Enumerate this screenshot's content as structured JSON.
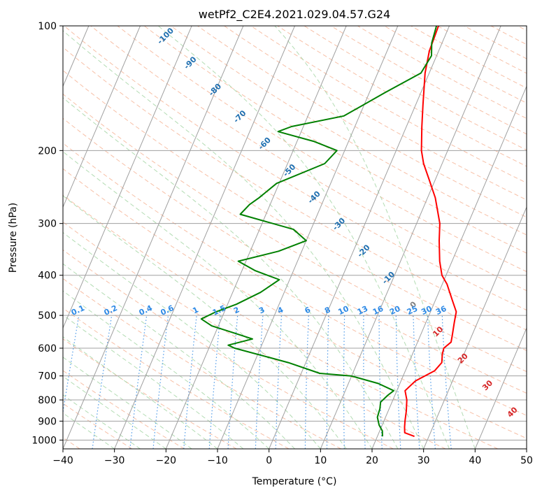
{
  "chart_data": {
    "type": "line",
    "title": "wetPf2_C2E4.2021.029.04.57.G24",
    "xlabel": "Temperature (°C)",
    "ylabel": "Pressure (hPa)",
    "xlim": [
      -40,
      50
    ],
    "ylim": [
      1050,
      100
    ],
    "y_scale": "log",
    "grid": true,
    "x_ticks": [
      "−40",
      "−30",
      "−20",
      "−10",
      "0",
      "10",
      "20",
      "30",
      "40",
      "50"
    ],
    "x_tick_values": [
      -40,
      -30,
      -20,
      -10,
      0,
      10,
      20,
      30,
      40,
      50
    ],
    "y_ticks": [
      "100",
      "200",
      "300",
      "400",
      "500",
      "600",
      "700",
      "800",
      "900",
      "1000"
    ],
    "y_tick_values": [
      100,
      200,
      300,
      400,
      500,
      600,
      700,
      800,
      900,
      1000
    ],
    "series": [
      {
        "role": "temperature",
        "color": "#ff0000",
        "points": [
          [
            27.2,
            980
          ],
          [
            25.0,
            960
          ],
          [
            24.5,
            930
          ],
          [
            24.1,
            900
          ],
          [
            23.5,
            850
          ],
          [
            22.7,
            800
          ],
          [
            21.6,
            760
          ],
          [
            22.8,
            720
          ],
          [
            25.7,
            680
          ],
          [
            26.4,
            650
          ],
          [
            25.8,
            620
          ],
          [
            25.6,
            600
          ],
          [
            26.5,
            580
          ],
          [
            26.2,
            560
          ],
          [
            25.5,
            520
          ],
          [
            25.0,
            490
          ],
          [
            23.3,
            460
          ],
          [
            20.9,
            420
          ],
          [
            19.2,
            400
          ],
          [
            17.6,
            370
          ],
          [
            15.8,
            330
          ],
          [
            14.5,
            300
          ],
          [
            11.5,
            260
          ],
          [
            8.8,
            235
          ],
          [
            6.4,
            215
          ],
          [
            4.9,
            200
          ],
          [
            3.0,
            175
          ],
          [
            1.4,
            155
          ],
          [
            -0.8,
            130
          ],
          [
            -1.8,
            115
          ],
          [
            -2.1,
            100
          ]
        ]
      },
      {
        "role": "dewpoint",
        "color": "#008000",
        "points": [
          [
            21.0,
            980
          ],
          [
            20.5,
            950
          ],
          [
            19.4,
            920
          ],
          [
            18.4,
            880
          ],
          [
            18.2,
            840
          ],
          [
            17.8,
            810
          ],
          [
            18.6,
            780
          ],
          [
            19.4,
            760
          ],
          [
            15.8,
            730
          ],
          [
            9.9,
            700
          ],
          [
            3.6,
            690
          ],
          [
            -3.4,
            650
          ],
          [
            -15.0,
            600
          ],
          [
            -16.5,
            590
          ],
          [
            -12.3,
            570
          ],
          [
            -16.7,
            550
          ],
          [
            -21.3,
            530
          ],
          [
            -23.9,
            510
          ],
          [
            -21.6,
            490
          ],
          [
            -18.3,
            470
          ],
          [
            -14.6,
            440
          ],
          [
            -12.0,
            410
          ],
          [
            -17.4,
            390
          ],
          [
            -21.5,
            370
          ],
          [
            -14.5,
            350
          ],
          [
            -10.0,
            330
          ],
          [
            -13.4,
            310
          ],
          [
            -25.0,
            285
          ],
          [
            -24.0,
            270
          ],
          [
            -22.7,
            260
          ],
          [
            -20.5,
            240
          ],
          [
            -12.8,
            215
          ],
          [
            -11.5,
            200
          ],
          [
            -16.8,
            190
          ],
          [
            -24.5,
            180
          ],
          [
            -22.3,
            175
          ],
          [
            -13.0,
            165
          ],
          [
            -7.0,
            145
          ],
          [
            -1.6,
            130
          ],
          [
            -1.0,
            118
          ],
          [
            -2.0,
            110
          ],
          [
            -2.5,
            100
          ]
        ]
      }
    ],
    "dry_adiabat_labels": [
      "-100",
      "-90",
      "-80",
      "-70",
      "-60",
      "-50",
      "-40",
      "-30",
      "-20",
      "-10",
      "0",
      "10",
      "20",
      "30",
      "40"
    ],
    "mixing_ratio_labels": [
      "0.1",
      "0.2",
      "0.4",
      "0.6",
      "1",
      "1.5",
      "2",
      "3",
      "4",
      "6",
      "8",
      "10",
      "13",
      "16",
      "20",
      "25",
      "30",
      "36"
    ],
    "colors": {
      "temperature": "#ff0000",
      "dewpoint": "#008000",
      "isotherm_grid": "#a0a0a0",
      "dry_adiabat": "#f4a582",
      "moist_adiabat": "#a6d6a6",
      "mixing_ratio": "#3a8ee6",
      "dry_adiabat_label_cold": "#1f6fb0",
      "dry_adiabat_label_warm": "#d62728",
      "dry_adiabat_label_zero": "#808080",
      "mixing_ratio_label": "#2e8ae6"
    }
  }
}
